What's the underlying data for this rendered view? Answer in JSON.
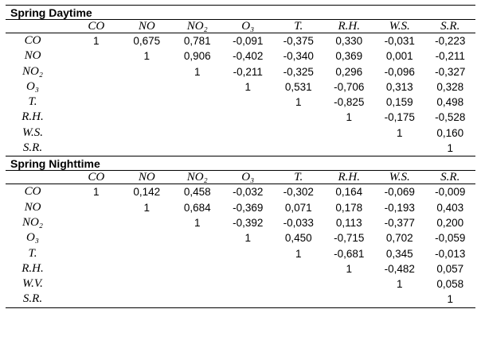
{
  "sections": [
    {
      "title": "Spring Daytime",
      "columns": [
        "CO",
        "NO",
        "NO₂",
        "O₃",
        "T.",
        "R.H.",
        "W.S.",
        "S.R."
      ],
      "rows": [
        {
          "label": "CO",
          "cells": [
            "1",
            "0,675",
            "0,781",
            "-0,091",
            "-0,375",
            "0,330",
            "-0,031",
            "-0,223"
          ]
        },
        {
          "label": "NO",
          "cells": [
            "",
            "1",
            "0,906",
            "-0,402",
            "-0,340",
            "0,369",
            "0,001",
            "-0,211"
          ]
        },
        {
          "label": "NO₂",
          "cells": [
            "",
            "",
            "1",
            "-0,211",
            "-0,325",
            "0,296",
            "-0,096",
            "-0,327"
          ]
        },
        {
          "label": "O₃",
          "cells": [
            "",
            "",
            "",
            "1",
            "0,531",
            "-0,706",
            "0,313",
            "0,328"
          ]
        },
        {
          "label": "T.",
          "cells": [
            "",
            "",
            "",
            "",
            "1",
            "-0,825",
            "0,159",
            "0,498"
          ]
        },
        {
          "label": "R.H.",
          "cells": [
            "",
            "",
            "",
            "",
            "",
            "1",
            "-0,175",
            "-0,528"
          ]
        },
        {
          "label": "W.S.",
          "cells": [
            "",
            "",
            "",
            "",
            "",
            "",
            "1",
            "0,160"
          ]
        },
        {
          "label": "S.R.",
          "cells": [
            "",
            "",
            "",
            "",
            "",
            "",
            "",
            "1"
          ]
        }
      ]
    },
    {
      "title": "Spring Nighttime",
      "columns": [
        "CO",
        "NO",
        "NO₂",
        "O₃",
        "T.",
        "R.H.",
        "W.S.",
        "S.R."
      ],
      "rows": [
        {
          "label": "CO",
          "cells": [
            "1",
            "0,142",
            "0,458",
            "-0,032",
            "-0,302",
            "0,164",
            "-0,069",
            "-0,009"
          ]
        },
        {
          "label": "NO",
          "cells": [
            "",
            "1",
            "0,684",
            "-0,369",
            "0,071",
            "0,178",
            "-0,193",
            "0,403"
          ]
        },
        {
          "label": "NO₂",
          "cells": [
            "",
            "",
            "1",
            "-0,392",
            "-0,033",
            "0,113",
            "-0,377",
            "0,200"
          ]
        },
        {
          "label": "O₃",
          "cells": [
            "",
            "",
            "",
            "1",
            "0,450",
            "-0,715",
            "0,702",
            "-0,059"
          ]
        },
        {
          "label": "T.",
          "cells": [
            "",
            "",
            "",
            "",
            "1",
            "-0,681",
            "0,345",
            "-0,013"
          ]
        },
        {
          "label": "R.H.",
          "cells": [
            "",
            "",
            "",
            "",
            "",
            "1",
            "-0,482",
            "0,057"
          ]
        },
        {
          "label": "W.V.",
          "cells": [
            "",
            "",
            "",
            "",
            "",
            "",
            "1",
            "0,058"
          ]
        },
        {
          "label": "S.R.",
          "cells": [
            "",
            "",
            "",
            "",
            "",
            "",
            "",
            "1"
          ]
        }
      ]
    }
  ]
}
